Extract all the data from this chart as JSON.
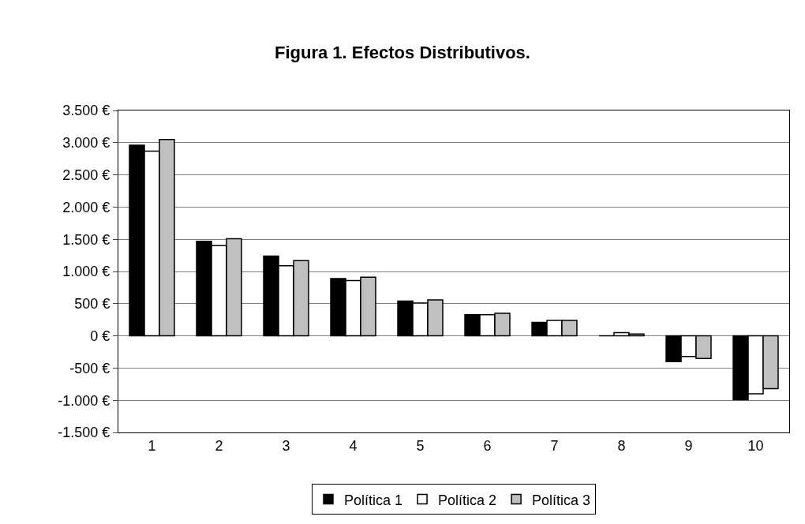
{
  "chart_data": {
    "type": "bar",
    "title": "Figura 1. Efectos Distributivos.",
    "categories": [
      "1",
      "2",
      "3",
      "4",
      "5",
      "6",
      "7",
      "8",
      "9",
      "10"
    ],
    "series": [
      {
        "name": "Política 1",
        "color": "#000000",
        "values": [
          2960,
          1470,
          1240,
          890,
          540,
          330,
          210,
          0,
          -400,
          -990
        ]
      },
      {
        "name": "Política 2",
        "color": "#ffffff",
        "values": [
          2870,
          1400,
          1090,
          860,
          510,
          330,
          240,
          50,
          -320,
          -900
        ]
      },
      {
        "name": "Política 3",
        "color": "#c0c0c0",
        "values": [
          3050,
          1510,
          1170,
          910,
          560,
          350,
          240,
          30,
          -350,
          -820
        ]
      }
    ],
    "ylim": [
      -1500,
      3500
    ],
    "yticks": [
      {
        "value": -1500,
        "label": "-1.500 €"
      },
      {
        "value": -1000,
        "label": "-1.000 €"
      },
      {
        "value": -500,
        "label": "-500 €"
      },
      {
        "value": 0,
        "label": "0 €"
      },
      {
        "value": 500,
        "label": "500 €"
      },
      {
        "value": 1000,
        "label": "1.000 €"
      },
      {
        "value": 1500,
        "label": "1.500 €"
      },
      {
        "value": 2000,
        "label": "2.000 €"
      },
      {
        "value": 2500,
        "label": "2.500 €"
      },
      {
        "value": 3000,
        "label": "3.000 €"
      },
      {
        "value": 3500,
        "label": "3.500 €"
      }
    ],
    "grid": "y",
    "legend": "bottom"
  }
}
